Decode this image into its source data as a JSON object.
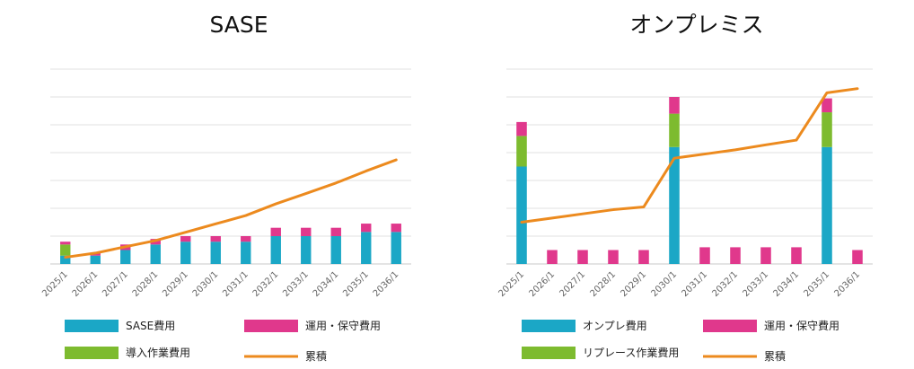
{
  "chart_data": [
    {
      "type": "bar",
      "title": "SASE",
      "categories": [
        "2025/1",
        "2026/1",
        "2027/1",
        "2028/1",
        "2029/1",
        "2030/1",
        "2031/1",
        "2032/1",
        "2033/1",
        "2034/1",
        "2035/1",
        "2036/1"
      ],
      "series": [
        {
          "name": "SASE費用",
          "type": "bar",
          "color": "#1ba7c6",
          "values": [
            3,
            3,
            5,
            7,
            8,
            8,
            8,
            10,
            10,
            10,
            11.5,
            11.5
          ]
        },
        {
          "name": "導入作業費用",
          "type": "bar",
          "color": "#7dbb2f",
          "values": [
            4,
            0,
            0,
            0,
            0,
            0,
            0,
            0,
            0,
            0,
            0,
            0
          ]
        },
        {
          "name": "運用・保守費用",
          "type": "bar",
          "color": "#e0388c",
          "values": [
            1,
            1,
            2,
            2,
            2,
            2,
            2,
            3,
            3,
            3,
            3,
            3
          ]
        },
        {
          "name": "累積",
          "type": "line",
          "color": "#ec8a1e",
          "values": [
            2.4,
            3.9,
            6.2,
            8.4,
            11.4,
            14.4,
            17.4,
            21.6,
            25.3,
            29.1,
            33.4,
            37.4
          ]
        }
      ],
      "ylim": [
        0,
        70
      ],
      "grid": true
    },
    {
      "type": "bar",
      "title": "オンプレミス",
      "categories": [
        "2025/1",
        "2026/1",
        "2027/1",
        "2028/1",
        "2029/1",
        "2030/1",
        "2031/1",
        "2032/1",
        "2033/1",
        "2034/1",
        "2035/1",
        "2036/1"
      ],
      "series": [
        {
          "name": "オンプレ費用",
          "type": "bar",
          "color": "#1ba7c6",
          "values": [
            35,
            0,
            0,
            0,
            0,
            42,
            0,
            0,
            0,
            0,
            42,
            0
          ]
        },
        {
          "name": "リプレース作業費用",
          "type": "bar",
          "color": "#7dbb2f",
          "values": [
            11,
            0,
            0,
            0,
            0,
            12,
            0,
            0,
            0,
            0,
            12.5,
            0
          ]
        },
        {
          "name": "運用・保守費用",
          "type": "bar",
          "color": "#e0388c",
          "values": [
            5,
            5,
            5,
            5,
            5,
            6,
            6,
            6,
            6,
            6,
            5,
            5
          ]
        },
        {
          "name": "累積",
          "type": "line",
          "color": "#ec8a1e",
          "values": [
            15,
            16.5,
            18,
            19.5,
            20.5,
            38,
            39.5,
            41,
            42.8,
            44.5,
            61.5,
            63
          ]
        }
      ],
      "ylim": [
        0,
        70
      ],
      "grid": true
    }
  ]
}
